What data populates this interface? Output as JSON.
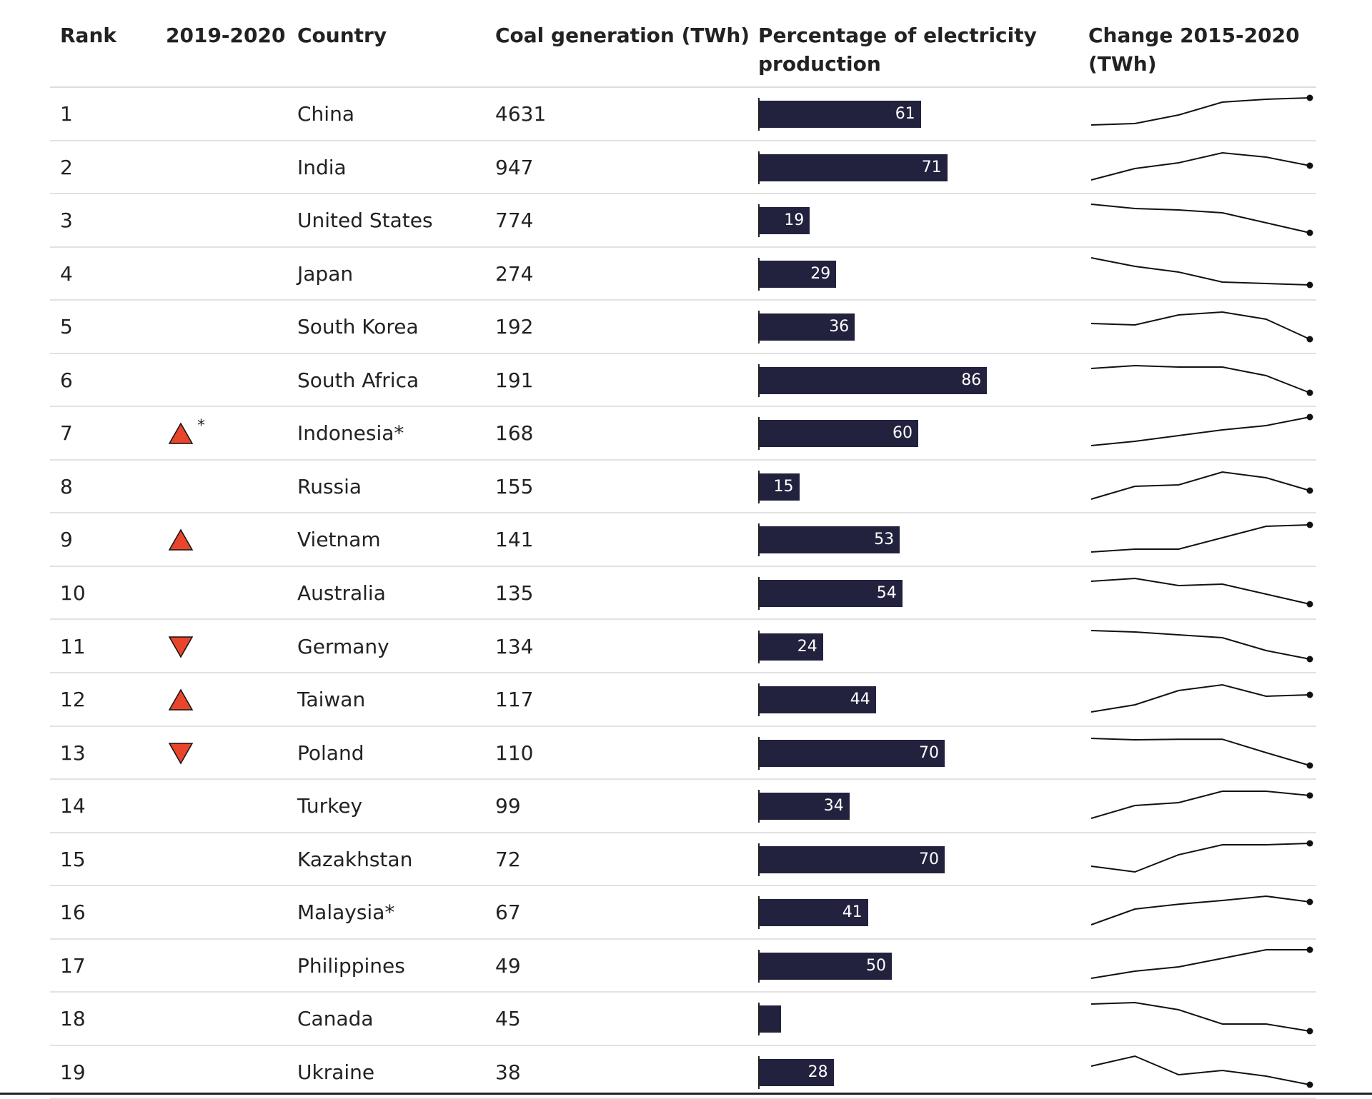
{
  "headers": {
    "rank": "Rank",
    "change": "2019-2020",
    "country": "Country",
    "coal": "Coal generation (TWh)",
    "pct_line1": "Percentage of electricity",
    "pct_line2": "production",
    "trend_line1": "Change 2015-2020",
    "trend_line2": "(TWh)"
  },
  "colors": {
    "bar": "#22223f",
    "up": "#e8452c",
    "down": "#e8452c",
    "line": "#111111"
  },
  "chart_data": {
    "type": "table",
    "columns": [
      "Rank",
      "2019-2020",
      "Country",
      "Coal generation (TWh)",
      "Percentage of electricity production",
      "Change 2015-2020 (TWh)"
    ],
    "rows": [
      {
        "rank": "1",
        "change": "",
        "star": "",
        "country": "China",
        "coal": "4631",
        "pct": 61,
        "pct_label": "61",
        "trend": [
          0.05,
          0.1,
          0.4,
          0.85,
          0.95,
          1.0
        ]
      },
      {
        "rank": "2",
        "change": "",
        "star": "",
        "country": "India",
        "coal": "947",
        "pct": 71,
        "pct_label": "71",
        "trend": [
          0.0,
          0.4,
          0.6,
          0.95,
          0.8,
          0.5
        ]
      },
      {
        "rank": "3",
        "change": "",
        "star": "",
        "country": "United States",
        "coal": "774",
        "pct": 19,
        "pct_label": "19",
        "trend": [
          1.0,
          0.85,
          0.8,
          0.7,
          0.35,
          0.0
        ]
      },
      {
        "rank": "4",
        "change": "",
        "star": "",
        "country": "Japan",
        "coal": "274",
        "pct": 29,
        "pct_label": "29",
        "trend": [
          1.0,
          0.7,
          0.5,
          0.15,
          0.1,
          0.05
        ]
      },
      {
        "rank": "5",
        "change": "",
        "star": "",
        "country": "South Korea",
        "coal": "192",
        "pct": 36,
        "pct_label": "36",
        "trend": [
          0.55,
          0.5,
          0.85,
          0.95,
          0.7,
          0.0
        ]
      },
      {
        "rank": "6",
        "change": "",
        "star": "",
        "country": "South Africa",
        "coal": "191",
        "pct": 86,
        "pct_label": "86",
        "trend": [
          0.85,
          0.95,
          0.9,
          0.9,
          0.6,
          0.0
        ]
      },
      {
        "rank": "7",
        "change": "up",
        "star": "*",
        "country": "Indonesia*",
        "coal": "168",
        "pct": 60,
        "pct_label": "60",
        "trend": [
          0.0,
          0.15,
          0.35,
          0.55,
          0.7,
          1.0
        ]
      },
      {
        "rank": "8",
        "change": "",
        "star": "",
        "country": "Russia",
        "coal": "155",
        "pct": 15,
        "pct_label": "15",
        "trend": [
          0.0,
          0.45,
          0.5,
          0.95,
          0.75,
          0.3
        ]
      },
      {
        "rank": "9",
        "change": "up",
        "star": "",
        "country": "Vietnam",
        "coal": "141",
        "pct": 53,
        "pct_label": "53",
        "trend": [
          0.0,
          0.1,
          0.1,
          0.5,
          0.9,
          0.95
        ]
      },
      {
        "rank": "10",
        "change": "",
        "star": "",
        "country": "Australia",
        "coal": "135",
        "pct": 54,
        "pct_label": "54",
        "trend": [
          0.85,
          0.95,
          0.7,
          0.75,
          0.4,
          0.05
        ]
      },
      {
        "rank": "11",
        "change": "down",
        "star": "",
        "country": "Germany",
        "coal": "134",
        "pct": 24,
        "pct_label": "24",
        "trend": [
          1.0,
          0.95,
          0.85,
          0.75,
          0.3,
          0.0
        ]
      },
      {
        "rank": "12",
        "change": "up",
        "star": "",
        "country": "Taiwan",
        "coal": "117",
        "pct": 44,
        "pct_label": "44",
        "trend": [
          0.0,
          0.25,
          0.75,
          0.95,
          0.55,
          0.6
        ]
      },
      {
        "rank": "13",
        "change": "down",
        "star": "",
        "country": "Poland",
        "coal": "110",
        "pct": 70,
        "pct_label": "70",
        "trend": [
          0.95,
          0.9,
          0.92,
          0.92,
          0.45,
          0.0
        ]
      },
      {
        "rank": "14",
        "change": "",
        "star": "",
        "country": "Turkey",
        "coal": "99",
        "pct": 34,
        "pct_label": "34",
        "trend": [
          0.0,
          0.45,
          0.55,
          0.95,
          0.95,
          0.8
        ]
      },
      {
        "rank": "15",
        "change": "",
        "star": "",
        "country": "Kazakhstan",
        "coal": "72",
        "pct": 70,
        "pct_label": "70",
        "trend": [
          0.2,
          0.0,
          0.6,
          0.95,
          0.95,
          1.0
        ]
      },
      {
        "rank": "16",
        "change": "",
        "star": "",
        "country": "Malaysia*",
        "coal": "67",
        "pct": 41,
        "pct_label": "41",
        "trend": [
          0.0,
          0.55,
          0.72,
          0.85,
          1.0,
          0.8
        ]
      },
      {
        "rank": "17",
        "change": "",
        "star": "",
        "country": "Philippines",
        "coal": "49",
        "pct": 50,
        "pct_label": "50",
        "trend": [
          0.0,
          0.25,
          0.4,
          0.7,
          1.0,
          1.0
        ]
      },
      {
        "rank": "18",
        "change": "",
        "star": "",
        "country": "Canada",
        "coal": "45",
        "pct": 8,
        "pct_label": "",
        "trend": [
          0.95,
          1.0,
          0.75,
          0.25,
          0.25,
          0.0
        ]
      },
      {
        "rank": "19",
        "change": "",
        "star": "",
        "country": "Ukraine",
        "coal": "38",
        "pct": 28,
        "pct_label": "28",
        "trend": [
          0.65,
          1.0,
          0.35,
          0.5,
          0.3,
          0.0
        ]
      }
    ],
    "pct_range": [
      0,
      100
    ]
  }
}
